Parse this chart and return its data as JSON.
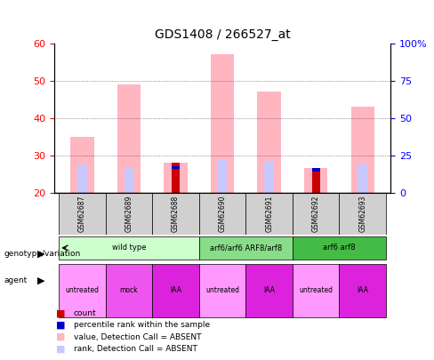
{
  "title": "GDS1408 / 266527_at",
  "samples": [
    "GSM62687",
    "GSM62689",
    "GSM62688",
    "GSM62690",
    "GSM62691",
    "GSM62692",
    "GSM62693"
  ],
  "ylim_left": [
    20,
    60
  ],
  "ylim_right": [
    0,
    100
  ],
  "yticks_left": [
    20,
    30,
    40,
    50,
    60
  ],
  "yticks_right": [
    0,
    25,
    50,
    75,
    100
  ],
  "ytick_labels_right": [
    "0",
    "25",
    "50",
    "75",
    "100%"
  ],
  "pink_bars": [
    35,
    49,
    28,
    57,
    47,
    26.5,
    43
  ],
  "light_pink_bars": [
    27.5,
    26.5,
    0,
    29,
    28.5,
    0,
    27.5
  ],
  "red_bars": [
    0,
    0,
    28,
    0,
    0,
    26,
    0
  ],
  "blue_bars": [
    0,
    0,
    27,
    0,
    0,
    26.5,
    0
  ],
  "pink_color": "#FFB6C1",
  "light_pink_color": "#C8C8FF",
  "red_color": "#CC0000",
  "blue_color": "#0000CC",
  "genotypes": [
    {
      "label": "wild type",
      "start": 0,
      "end": 3,
      "color": "#CCFFCC"
    },
    {
      "label": "arf6/arf6 ARF8/arf8",
      "start": 3,
      "end": 5,
      "color": "#88DD88"
    },
    {
      "label": "arf6 arf8",
      "start": 5,
      "end": 7,
      "color": "#44BB44"
    }
  ],
  "agents": [
    {
      "label": "untreated",
      "start": 0,
      "end": 1,
      "color": "#FF99FF"
    },
    {
      "label": "mock",
      "start": 1,
      "end": 2,
      "color": "#EE55EE"
    },
    {
      "label": "IAA",
      "start": 2,
      "end": 3,
      "color": "#DD22DD"
    },
    {
      "label": "untreated",
      "start": 3,
      "end": 4,
      "color": "#FF99FF"
    },
    {
      "label": "IAA",
      "start": 4,
      "end": 5,
      "color": "#DD22DD"
    },
    {
      "label": "untreated",
      "start": 5,
      "end": 6,
      "color": "#FF99FF"
    },
    {
      "label": "IAA",
      "start": 6,
      "end": 7,
      "color": "#DD22DD"
    }
  ],
  "legend_items": [
    {
      "color": "#CC0000",
      "label": "count"
    },
    {
      "color": "#0000CC",
      "label": "percentile rank within the sample"
    },
    {
      "color": "#FFB6C1",
      "label": "value, Detection Call = ABSENT"
    },
    {
      "color": "#C8C8FF",
      "label": "rank, Detection Call = ABSENT"
    }
  ],
  "bar_width": 0.5,
  "baseline": 20
}
